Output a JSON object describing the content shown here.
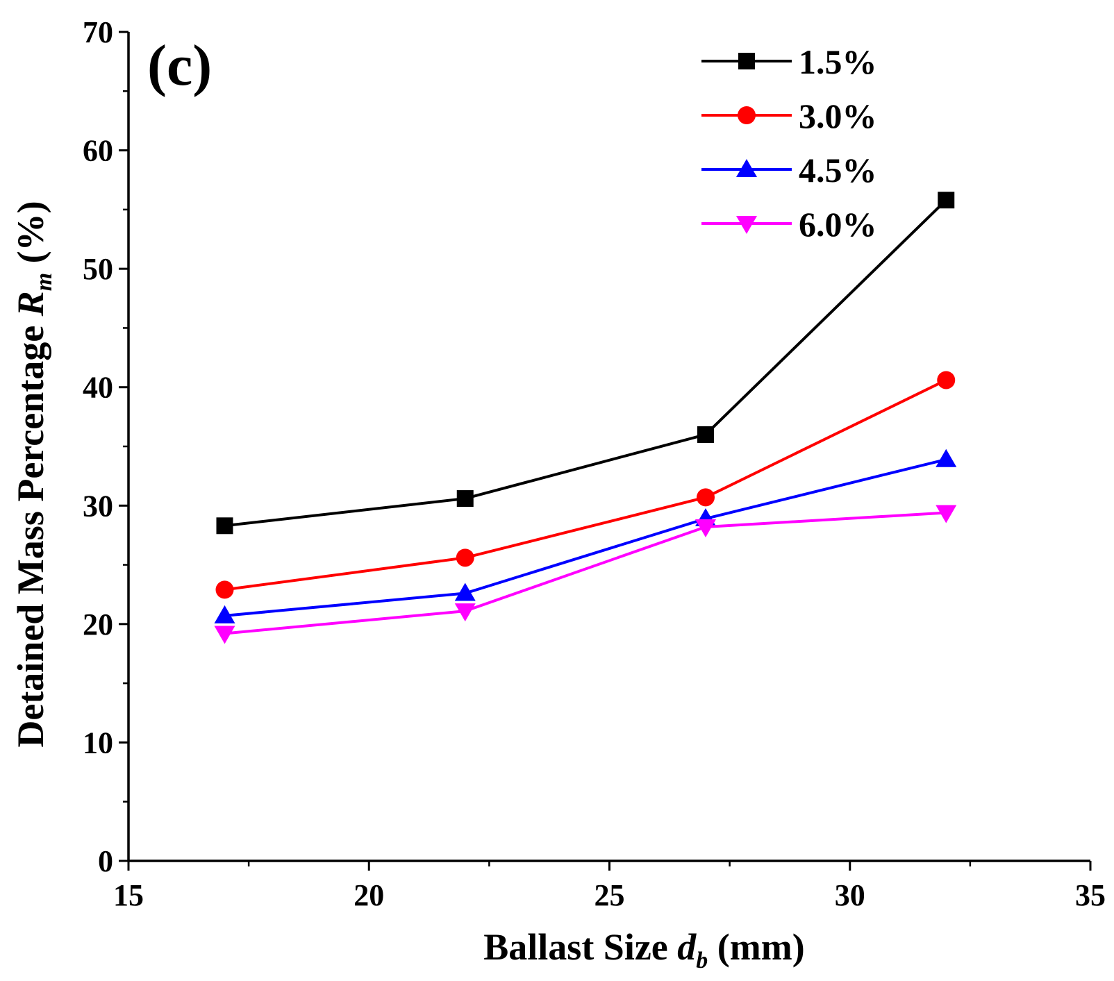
{
  "chart_data": {
    "type": "line",
    "panel_label": "(c)",
    "xlabel": {
      "main": "Ballast Size ",
      "symbol": "d",
      "subscript": "b",
      "unit": " (mm)"
    },
    "ylabel": {
      "main": "Detained Mass Percentage ",
      "symbol": "R",
      "subscript": "m",
      "unit": " (%)"
    },
    "xlim": [
      15,
      35
    ],
    "ylim": [
      0,
      70
    ],
    "x_ticks": [
      15,
      20,
      25,
      30,
      35
    ],
    "y_ticks": [
      0,
      10,
      20,
      30,
      40,
      50,
      60,
      70
    ],
    "x_minor_ticks": [
      17.5,
      22.5,
      27.5,
      32.5
    ],
    "y_minor_ticks": [
      5,
      15,
      25,
      35,
      45,
      55,
      65
    ],
    "legend_position": "top-right",
    "x": [
      17,
      22,
      27,
      32
    ],
    "series": [
      {
        "name": "1.5%",
        "color": "#000000",
        "marker": "square",
        "values": [
          28.3,
          30.6,
          36.0,
          55.8
        ]
      },
      {
        "name": "3.0%",
        "color": "#ff0000",
        "marker": "circle",
        "values": [
          22.9,
          25.6,
          30.7,
          40.6
        ]
      },
      {
        "name": "4.5%",
        "color": "#0000ff",
        "marker": "triangle-up",
        "values": [
          20.7,
          22.6,
          28.9,
          33.9
        ]
      },
      {
        "name": "6.0%",
        "color": "#ff00ff",
        "marker": "triangle-down",
        "values": [
          19.2,
          21.1,
          28.2,
          29.4
        ]
      }
    ]
  }
}
